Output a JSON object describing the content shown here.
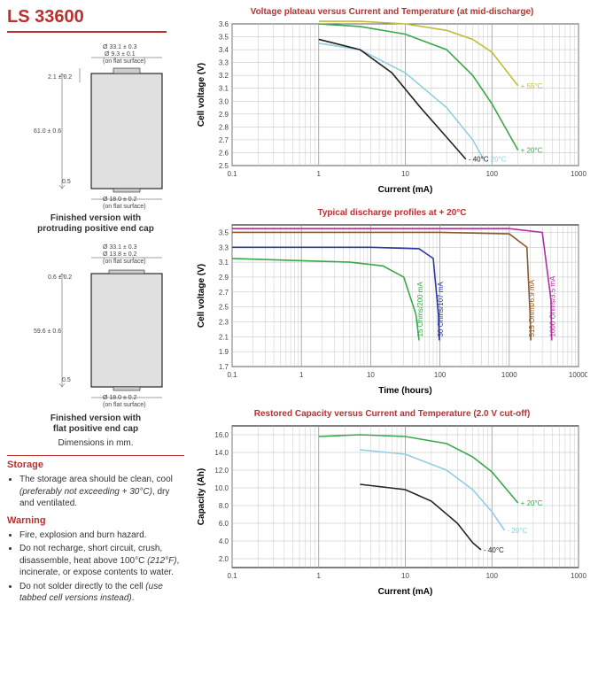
{
  "product": {
    "title": "LS 33600"
  },
  "diagrams": {
    "protruding": {
      "caption_l1": "Finished version with",
      "caption_l2": "protruding positive end cap",
      "height": "61.0 ± 0.6",
      "top_shoulder": "2.1 ± 0.2",
      "bottom_shoulder": "0.5",
      "od": "Ø 33.1 ± 0.3",
      "top_flat": "Ø 9.3 ± 0.1",
      "top_flat_note": "(on flat surface)",
      "base_flat": "Ø 18.0 ± 0.2",
      "base_flat_note": "(on flat surface)"
    },
    "flat": {
      "caption_l1": "Finished version with",
      "caption_l2": "flat positive end cap",
      "height": "59.6 ± 0.6",
      "top_shoulder": "0.6 ± 0.2",
      "bottom_shoulder": "0.5",
      "od": "Ø 33.1 ± 0.3",
      "top_flat": "Ø 13.8 ± 0.2",
      "top_flat_note": "(on flat surface)",
      "base_flat": "Ø 18.0 ± 0.2",
      "base_flat_note": "(on flat surface)"
    },
    "dim_note": "Dimensions in mm."
  },
  "storage": {
    "heading": "Storage",
    "bullet1": "The storage area should be clean, cool ",
    "bullet1_italic": "(preferably not exceeding + 30°C)",
    "bullet1_end": ", dry and ventilated."
  },
  "warning": {
    "heading": "Warning",
    "b1": "Fire, explosion and burn hazard.",
    "b2": "Do not recharge, short circuit, crush, disassemble, heat above 100°C ",
    "b2_italic": "(212°F)",
    "b2_end": ", incinerate, or expose contents to water.",
    "b3": "Do not solder directly to the cell ",
    "b3_italic": "(use tabbed cell versions instead)",
    "b3_end": "."
  },
  "chart1": {
    "title": "Voltage plateau versus Current and Temperature (at mid-discharge)",
    "ylabel": "Cell voltage (V)",
    "xlabel": "Current (mA)",
    "x_ticks": [
      "0.1",
      "1",
      "10",
      "100",
      "1000"
    ],
    "y_ticks": [
      "2.5",
      "2.6",
      "2.7",
      "2.8",
      "2.9",
      "3.0",
      "3.1",
      "3.2",
      "3.3",
      "3.4",
      "3.5",
      "3.6"
    ],
    "y_min": 2.5,
    "y_max": 3.6,
    "series": [
      {
        "label": "+ 55°C",
        "color": "#c2bb3a",
        "pts": [
          [
            1,
            3.62
          ],
          [
            3,
            3.62
          ],
          [
            10,
            3.6
          ],
          [
            30,
            3.55
          ],
          [
            60,
            3.48
          ],
          [
            100,
            3.38
          ],
          [
            200,
            3.12
          ]
        ]
      },
      {
        "label": "+ 20°C",
        "color": "#3aa84a",
        "pts": [
          [
            1,
            3.6
          ],
          [
            3,
            3.58
          ],
          [
            10,
            3.52
          ],
          [
            30,
            3.4
          ],
          [
            60,
            3.2
          ],
          [
            100,
            2.98
          ],
          [
            200,
            2.62
          ]
        ]
      },
      {
        "label": "- 20°C",
        "color": "#8fcfe0",
        "pts": [
          [
            1,
            3.45
          ],
          [
            3,
            3.4
          ],
          [
            10,
            3.22
          ],
          [
            30,
            2.95
          ],
          [
            60,
            2.7
          ],
          [
            80,
            2.55
          ]
        ]
      },
      {
        "label": "- 40°C",
        "color": "#222222",
        "pts": [
          [
            1,
            3.48
          ],
          [
            3,
            3.4
          ],
          [
            7,
            3.22
          ],
          [
            15,
            2.95
          ],
          [
            30,
            2.72
          ],
          [
            50,
            2.55
          ]
        ]
      }
    ]
  },
  "chart2": {
    "title": "Typical discharge profiles at + 20°C",
    "ylabel": "Cell voltage (V)",
    "xlabel": "Time (hours)",
    "x_ticks": [
      "0.1",
      "1",
      "10",
      "100",
      "1000",
      "10000"
    ],
    "y_ticks": [
      "1.7",
      "1.9",
      "2.1",
      "2.3",
      "2.5",
      "2.7",
      "2.9",
      "3.1",
      "3.3",
      "3.5"
    ],
    "y_min": 1.7,
    "y_max": 3.6,
    "series": [
      {
        "label": "15 Ohms/200 mA",
        "color": "#3aa84a",
        "pts": [
          [
            0.1,
            3.15
          ],
          [
            1,
            3.12
          ],
          [
            5,
            3.1
          ],
          [
            15,
            3.05
          ],
          [
            30,
            2.9
          ],
          [
            45,
            2.4
          ],
          [
            50,
            2.05
          ]
        ]
      },
      {
        "label": "30 Ohms/107 mA",
        "color": "#2a3aa0",
        "pts": [
          [
            0.1,
            3.3
          ],
          [
            1,
            3.3
          ],
          [
            10,
            3.3
          ],
          [
            50,
            3.28
          ],
          [
            80,
            3.15
          ],
          [
            95,
            2.4
          ],
          [
            98,
            2.05
          ]
        ]
      },
      {
        "label": "515 Ohms/6.9 mA",
        "color": "#8a5a2a",
        "pts": [
          [
            0.1,
            3.5
          ],
          [
            1,
            3.5
          ],
          [
            100,
            3.5
          ],
          [
            1000,
            3.48
          ],
          [
            1800,
            3.3
          ],
          [
            2000,
            2.4
          ],
          [
            2050,
            2.05
          ]
        ]
      },
      {
        "label": "1000 Ohms/3.5 mA",
        "color": "#b030a0",
        "pts": [
          [
            0.1,
            3.55
          ],
          [
            1,
            3.55
          ],
          [
            100,
            3.55
          ],
          [
            1000,
            3.55
          ],
          [
            3000,
            3.5
          ],
          [
            4000,
            2.6
          ],
          [
            4100,
            2.05
          ]
        ]
      }
    ]
  },
  "chart3": {
    "title": "Restored Capacity versus Current and Temperature (2.0 V cut-off)",
    "ylabel": "Capacity (Ah)",
    "xlabel": "Current (mA)",
    "x_ticks": [
      "0.1",
      "1",
      "10",
      "100",
      "1000"
    ],
    "y_ticks": [
      "2.0",
      "4.0",
      "6.0",
      "8.0",
      "10.0",
      "12.0",
      "14.0",
      "16.0"
    ],
    "y_min": 1.0,
    "y_max": 17.0,
    "series": [
      {
        "label": "+ 20°C",
        "color": "#3aa84a",
        "pts": [
          [
            1,
            15.8
          ],
          [
            3,
            16.0
          ],
          [
            10,
            15.8
          ],
          [
            30,
            15.0
          ],
          [
            60,
            13.5
          ],
          [
            100,
            11.8
          ],
          [
            200,
            8.3
          ]
        ]
      },
      {
        "label": "- 20°C",
        "color": "#8fcfe0",
        "pts": [
          [
            3,
            14.3
          ],
          [
            10,
            13.8
          ],
          [
            30,
            12.0
          ],
          [
            60,
            9.8
          ],
          [
            100,
            7.3
          ],
          [
            140,
            5.2
          ]
        ]
      },
      {
        "label": "- 40°C",
        "color": "#222222",
        "pts": [
          [
            3,
            10.4
          ],
          [
            10,
            9.8
          ],
          [
            20,
            8.5
          ],
          [
            40,
            6.0
          ],
          [
            60,
            3.8
          ],
          [
            75,
            3.0
          ]
        ]
      }
    ]
  },
  "colors": {
    "grid": "#bbbbbb",
    "grid_major": "#999999",
    "axis": "#000000"
  }
}
